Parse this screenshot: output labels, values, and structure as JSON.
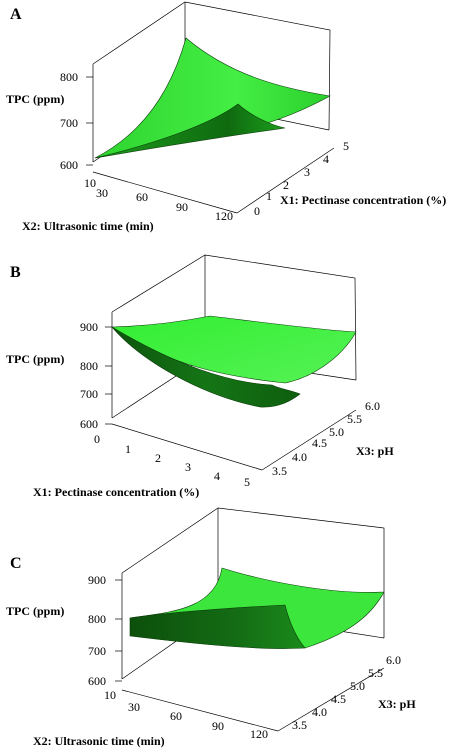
{
  "colors": {
    "surface_light": "#33ee33",
    "surface_mid": "#1db81d",
    "surface_dark": "#0e5e0e",
    "edge": "#0a3d0a"
  },
  "chart_data": [
    {
      "type": "surface",
      "panel_label": "A",
      "zlabel": "TPC (ppm)",
      "xlabel": "X2: Ultrasonic time (min)",
      "ylabel": "X1: Pectinase concentration (%)",
      "x_ticks": [
        "10",
        "30",
        "60",
        "90",
        "120"
      ],
      "y_ticks": [
        "0",
        "1",
        "2",
        "3",
        "4",
        "5"
      ],
      "z_ticks": [
        "600",
        "700",
        "800"
      ],
      "xlim": [
        10,
        120
      ],
      "ylim": [
        0,
        5
      ],
      "zlim": [
        600,
        850
      ],
      "surface_corners": [
        {
          "x": 10,
          "y": 0,
          "z": 620
        },
        {
          "x": 120,
          "y": 0,
          "z": 650
        },
        {
          "x": 120,
          "y": 5,
          "z": 760
        },
        {
          "x": 10,
          "y": 5,
          "z": 830
        }
      ]
    },
    {
      "type": "surface",
      "panel_label": "B",
      "zlabel": "TPC (ppm)",
      "xlabel": "X1: Pectinase concentration (%)",
      "ylabel": "X3: pH",
      "x_ticks": [
        "0",
        "1",
        "2",
        "3",
        "4",
        "5"
      ],
      "y_ticks": [
        "3.5",
        "4.0",
        "4.5",
        "5.0",
        "5.5",
        "6.0"
      ],
      "z_ticks": [
        "600",
        "700",
        "800",
        "900"
      ],
      "xlim": [
        0,
        5
      ],
      "ylim": [
        3.5,
        6.0
      ],
      "zlim": [
        600,
        950
      ],
      "surface_corners": [
        {
          "x": 0,
          "y": 3.5,
          "z": 890
        },
        {
          "x": 5,
          "y": 3.5,
          "z": 720
        },
        {
          "x": 5,
          "y": 6.0,
          "z": 900
        },
        {
          "x": 0,
          "y": 6.0,
          "z": 920
        }
      ],
      "surface_minimum": {
        "x": 4,
        "y": 4.5,
        "z": 700
      }
    },
    {
      "type": "surface",
      "panel_label": "C",
      "zlabel": "TPC (ppm)",
      "xlabel": "X2: Ultrasonic time (min)",
      "ylabel": "X3: pH",
      "x_ticks": [
        "10",
        "30",
        "60",
        "90",
        "120"
      ],
      "y_ticks": [
        "3.5",
        "4.0",
        "4.5",
        "5.0",
        "5.5",
        "6.0"
      ],
      "z_ticks": [
        "600",
        "700",
        "800",
        "900"
      ],
      "xlim": [
        10,
        120
      ],
      "ylim": [
        3.5,
        6.0
      ],
      "zlim": [
        600,
        950
      ],
      "surface_corners": [
        {
          "x": 10,
          "y": 3.5,
          "z": 780
        },
        {
          "x": 120,
          "y": 3.5,
          "z": 760
        },
        {
          "x": 120,
          "y": 6.0,
          "z": 870
        },
        {
          "x": 10,
          "y": 6.0,
          "z": 830
        }
      ],
      "surface_minimum": {
        "x": 90,
        "y": 4.5,
        "z": 740
      }
    }
  ]
}
